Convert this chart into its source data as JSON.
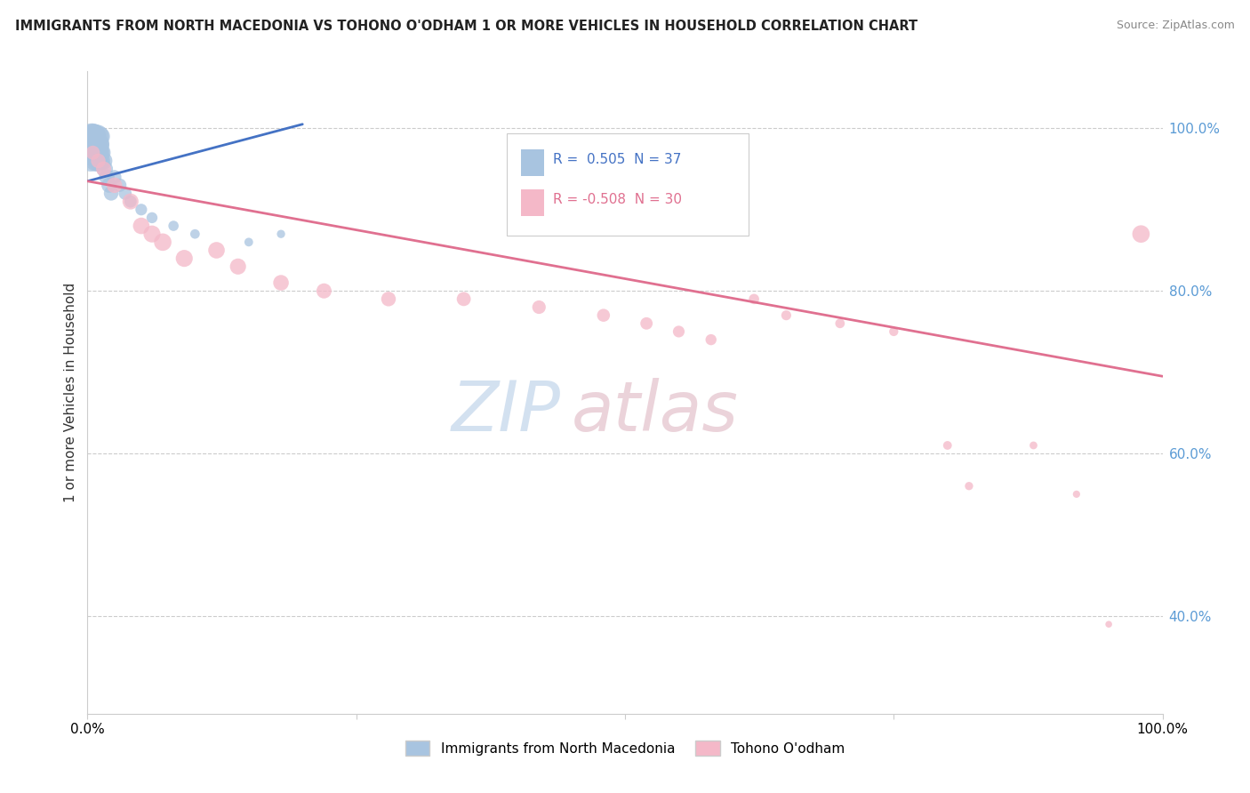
{
  "title": "IMMIGRANTS FROM NORTH MACEDONIA VS TOHONO O'ODHAM 1 OR MORE VEHICLES IN HOUSEHOLD CORRELATION CHART",
  "source": "Source: ZipAtlas.com",
  "ylabel": "1 or more Vehicles in Household",
  "legend_blue_r": "0.505",
  "legend_blue_n": "37",
  "legend_pink_r": "-0.508",
  "legend_pink_n": "30",
  "blue_legend_label": "Immigrants from North Macedonia",
  "pink_legend_label": "Tohono O'odham",
  "blue_color": "#a8c4e0",
  "blue_line_color": "#4472c4",
  "pink_color": "#f4b8c8",
  "pink_line_color": "#e07090",
  "blue_scatter_x": [
    0.002,
    0.003,
    0.003,
    0.004,
    0.004,
    0.005,
    0.005,
    0.006,
    0.006,
    0.007,
    0.007,
    0.008,
    0.008,
    0.009,
    0.009,
    0.01,
    0.01,
    0.011,
    0.011,
    0.012,
    0.012,
    0.013,
    0.015,
    0.016,
    0.018,
    0.02,
    0.022,
    0.025,
    0.03,
    0.035,
    0.04,
    0.05,
    0.06,
    0.08,
    0.1,
    0.15,
    0.18
  ],
  "blue_scatter_y": [
    0.97,
    0.98,
    0.96,
    0.99,
    0.97,
    0.99,
    0.98,
    0.97,
    0.99,
    0.98,
    0.97,
    0.96,
    0.98,
    0.97,
    0.99,
    0.98,
    0.96,
    0.97,
    0.98,
    0.96,
    0.99,
    0.97,
    0.96,
    0.95,
    0.94,
    0.93,
    0.92,
    0.94,
    0.93,
    0.92,
    0.91,
    0.9,
    0.89,
    0.88,
    0.87,
    0.86,
    0.87
  ],
  "blue_scatter_sizes": [
    400,
    350,
    300,
    450,
    380,
    420,
    360,
    340,
    400,
    350,
    320,
    300,
    380,
    340,
    360,
    320,
    300,
    280,
    260,
    250,
    240,
    220,
    200,
    180,
    160,
    150,
    140,
    130,
    120,
    110,
    100,
    90,
    80,
    70,
    60,
    50,
    45
  ],
  "pink_scatter_x": [
    0.005,
    0.01,
    0.015,
    0.025,
    0.04,
    0.05,
    0.06,
    0.07,
    0.09,
    0.12,
    0.14,
    0.18,
    0.22,
    0.28,
    0.35,
    0.42,
    0.48,
    0.52,
    0.55,
    0.58,
    0.62,
    0.65,
    0.7,
    0.75,
    0.8,
    0.82,
    0.88,
    0.92,
    0.95,
    0.98
  ],
  "pink_scatter_y": [
    0.97,
    0.96,
    0.95,
    0.93,
    0.91,
    0.88,
    0.87,
    0.86,
    0.84,
    0.85,
    0.83,
    0.81,
    0.8,
    0.79,
    0.79,
    0.78,
    0.77,
    0.76,
    0.75,
    0.74,
    0.79,
    0.77,
    0.76,
    0.75,
    0.61,
    0.56,
    0.61,
    0.55,
    0.39,
    0.87
  ],
  "pink_scatter_sizes": [
    130,
    140,
    150,
    160,
    170,
    180,
    190,
    200,
    190,
    180,
    170,
    160,
    150,
    140,
    130,
    120,
    110,
    100,
    90,
    80,
    70,
    65,
    60,
    55,
    50,
    45,
    40,
    35,
    30,
    200
  ],
  "blue_line_x0": 0.0,
  "blue_line_x1": 0.2,
  "blue_line_y0": 0.935,
  "blue_line_y1": 1.005,
  "pink_line_x0": 0.0,
  "pink_line_x1": 1.0,
  "pink_line_y0": 0.935,
  "pink_line_y1": 0.695,
  "xlim": [
    0.0,
    1.0
  ],
  "ylim": [
    0.28,
    1.07
  ],
  "yticks": [
    1.0,
    0.8,
    0.6,
    0.4
  ],
  "ytick_labels": [
    "100.0%",
    "80.0%",
    "60.0%",
    "40.0%"
  ]
}
